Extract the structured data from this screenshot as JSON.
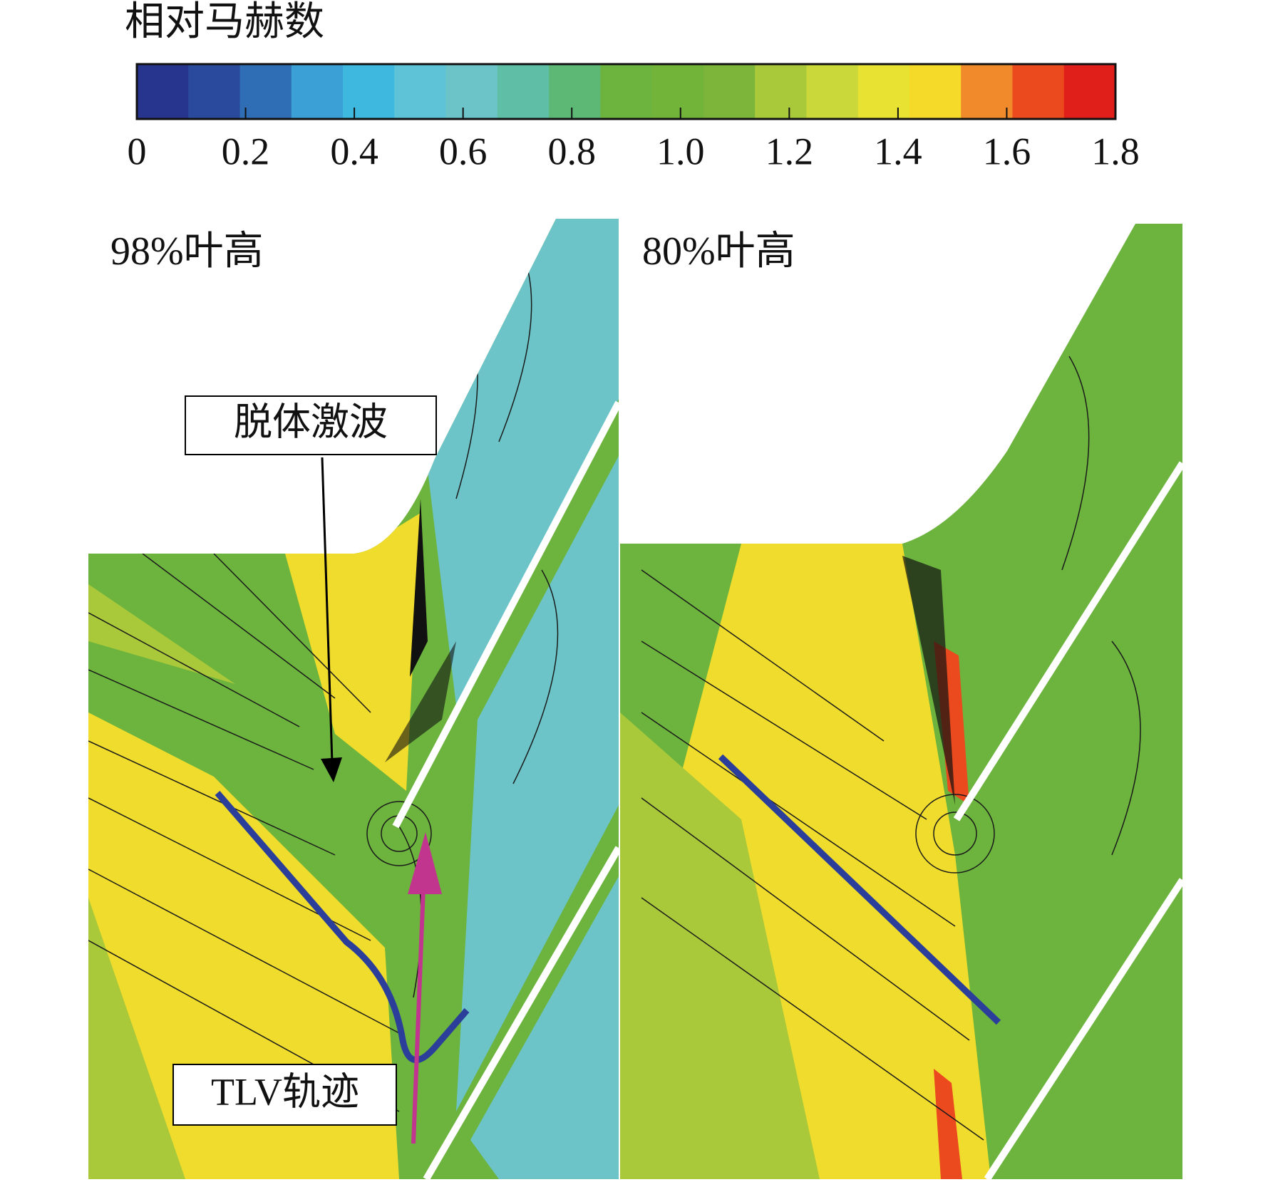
{
  "chart_data": {
    "type": "colorbar",
    "title": "相对马赫数",
    "range": [
      0,
      1.8
    ],
    "ticks": [
      0,
      0.2,
      0.4,
      0.6,
      0.8,
      {
        "value": 1,
        "label": "1.0"
      },
      1.2,
      1.4,
      1.6,
      1.8
    ],
    "colors": [
      "#27358f",
      "#2a4a9e",
      "#2f6db5",
      "#3aa0d6",
      "#3fb8e0",
      "#5ec3d6",
      "#6cc4c8",
      "#5fbfa6",
      "#5db876",
      "#6cb43e",
      "#72b33a",
      "#7cb53a",
      "#a9c93a",
      "#cbd83a",
      "#e8e232",
      "#f5da2a",
      "#f08a2a",
      "#ea4a1e",
      "#e01f1a"
    ],
    "panels": [
      {
        "label": "98%叶高",
        "annotations": [
          "脱体激波",
          "TLV轨迹"
        ]
      },
      {
        "label": "80%叶高"
      }
    ]
  }
}
